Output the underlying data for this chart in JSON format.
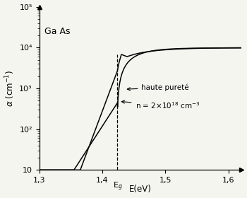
{
  "title": "",
  "xlabel": "E(eV)",
  "material_label": "Ga As",
  "xmin": 1.3,
  "xmax": 1.62,
  "ymin": 10,
  "ymax": 100000.0,
  "Eg": 1.424,
  "xticks": [
    1.3,
    1.4,
    1.5,
    1.6
  ],
  "xtick_labels": [
    "1,3",
    "1,4",
    "1,5",
    "1,6"
  ],
  "yticks": [
    10,
    100,
    1000,
    10000,
    100000
  ],
  "curve_color": "#000000",
  "background_color": "#f5f5f0",
  "label_haute_purete": "haute pureté",
  "label_n_doped": "n = 2×10$^{18}$ cm$^{-3}$",
  "figwidth": 3.5,
  "figheight": 2.8,
  "dpi": 100
}
